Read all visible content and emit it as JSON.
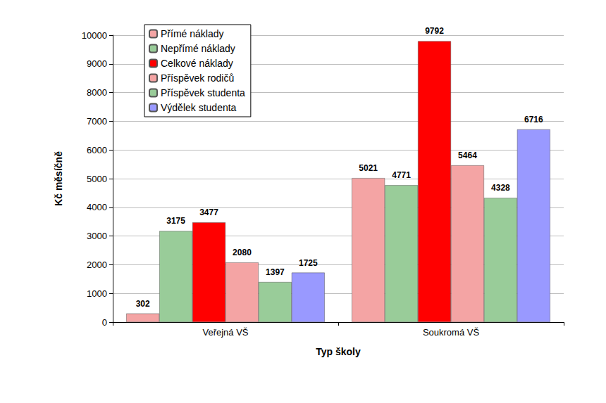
{
  "chart_data": {
    "type": "bar",
    "x_label": "Typ školy",
    "y_label": "Kč měsíčně",
    "categories": [
      "Veřejná VŠ",
      "Soukromá VŠ"
    ],
    "series": [
      {
        "name": "Přímé náklady",
        "color": "#f4a4a4",
        "values": [
          302,
          5021
        ]
      },
      {
        "name": "Nepřímé náklady",
        "color": "#99cc99",
        "values": [
          3175,
          4771
        ]
      },
      {
        "name": "Celkové náklady",
        "color": "#ff0000",
        "values": [
          3477,
          9792
        ]
      },
      {
        "name": "Příspěvek rodičů",
        "color": "#f4a4a4",
        "values": [
          2080,
          5464
        ]
      },
      {
        "name": "Příspěvek studenta",
        "color": "#99cc99",
        "values": [
          1397,
          4328
        ]
      },
      {
        "name": "Výdělek studenta",
        "color": "#9999ff",
        "values": [
          1725,
          6716
        ]
      }
    ],
    "ylim": [
      0,
      10000
    ],
    "yticks": [
      0,
      1000,
      2000,
      3000,
      4000,
      5000,
      6000,
      7000,
      8000,
      9000,
      10000
    ],
    "grid": true,
    "legend": "upper left",
    "data_labels": true
  }
}
